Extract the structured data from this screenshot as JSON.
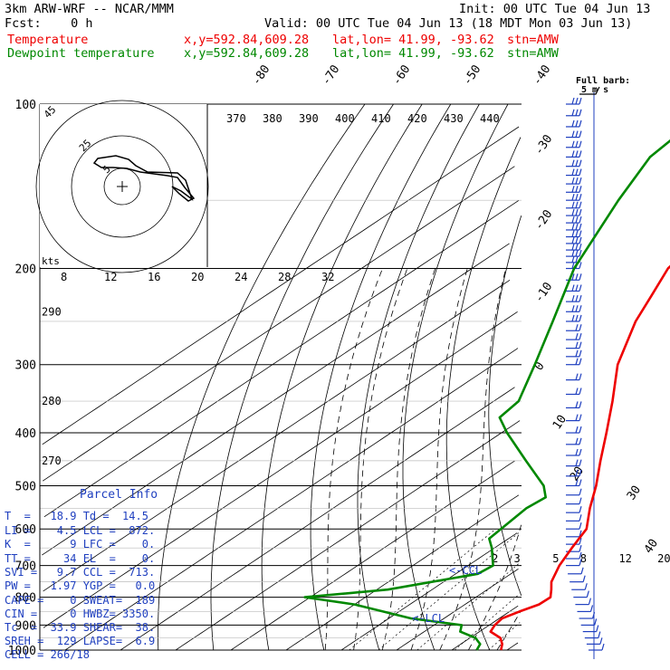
{
  "header": {
    "model": "3km ARW-WRF -- NCAR/MMM",
    "init": "Init: 00 UTC Tue 04 Jun 13",
    "fcst": "Fcst:    0 h",
    "valid": "Valid: 00 UTC Tue 04 Jun 13 (18 MDT Mon 03 Jun 13)",
    "temp_label": "Temperature",
    "dew_label": "Dewpoint temperature",
    "loc_xy": "x,y=592.84,609.28",
    "loc_latlon": "lat,lon= 41.99, -93.62",
    "stn": "stn=AMW",
    "temp_color": "#ee0000",
    "dew_color": "#008800"
  },
  "full_barb_label": "Full barb:",
  "full_barb_units": "5 m s",
  "hodograph_units": "kts",
  "parcel_title": "Parcel Info",
  "parcel_rows": [
    "T  =   18.9 Td =  14.5",
    "LI =    4.5 LCL =  872.",
    "K  =      9 LFC =    0.",
    "TT =     34 EL  =    0.",
    "SVI =   9.7 CCL =  713.",
    "PW =   1.97 YGP =   0.0",
    "CAPE =    0 SWEAT=  189",
    "CIN =     0 HWBZ= 3350.",
    "Tc  =  33.9 SHEAR=  38.",
    "SREH =  129 LAPSE=  6.9",
    "CELL = 266/18"
  ],
  "ccl_label": "<-CCL",
  "lcl_label": "<-LCL",
  "chart_data": {
    "type": "line",
    "title": "",
    "pressure_levels": [
      100,
      200,
      300,
      400,
      500,
      600,
      700,
      800,
      900,
      1000
    ],
    "isotherm_labels": [
      "-80",
      "-70",
      "-60",
      "-50",
      "-40",
      "-30",
      "-20",
      "-10",
      "0",
      "10",
      "20",
      "30",
      "40"
    ],
    "theta_labels": [
      "370",
      "380",
      "390",
      "400",
      "410",
      "420",
      "430",
      "440"
    ],
    "theta_left_labels": [
      "290",
      "280",
      "270"
    ],
    "theta_left_label_p": [
      240,
      350,
      450
    ],
    "mixing_ratio_labels": [
      "2",
      "3",
      "5",
      "8",
      "12",
      "20"
    ],
    "mixing_ratio_label_t": [
      -6,
      -2,
      5,
      10,
      17,
      24
    ],
    "hodo_speed_labels": [
      "8",
      "12",
      "16",
      "20",
      "24",
      "28",
      "32"
    ],
    "hodo_ring_labels": [
      "5",
      "25",
      "45"
    ],
    "series": [
      {
        "name": "Temperature",
        "points": [
          {
            "p": 1000,
            "t": 18.9
          },
          {
            "p": 975,
            "t": 17.5
          },
          {
            "p": 950,
            "t": 15.5
          },
          {
            "p": 925,
            "t": 12.0
          },
          {
            "p": 900,
            "t": 11.0
          },
          {
            "p": 875,
            "t": 10.5
          },
          {
            "p": 850,
            "t": 11.8
          },
          {
            "p": 825,
            "t": 13.4
          },
          {
            "p": 800,
            "t": 13.5
          },
          {
            "p": 775,
            "t": 11.6
          },
          {
            "p": 750,
            "t": 9.5
          },
          {
            "p": 700,
            "t": 6.5
          },
          {
            "p": 650,
            "t": 4.0
          },
          {
            "p": 600,
            "t": 1.5
          },
          {
            "p": 550,
            "t": -3.5
          },
          {
            "p": 500,
            "t": -8.5
          },
          {
            "p": 450,
            "t": -14.5
          },
          {
            "p": 400,
            "t": -21.0
          },
          {
            "p": 350,
            "t": -28.5
          },
          {
            "p": 300,
            "t": -37.5
          },
          {
            "p": 250,
            "t": -46.0
          },
          {
            "p": 225,
            "t": -50.0
          },
          {
            "p": 200,
            "t": -54.5
          },
          {
            "p": 190,
            "t": -55.5
          },
          {
            "p": 175,
            "t": -56.0
          },
          {
            "p": 150,
            "t": -58.5
          },
          {
            "p": 125,
            "t": -62.0
          },
          {
            "p": 110,
            "t": -65.5
          },
          {
            "p": 100,
            "t": -68.0
          }
        ]
      },
      {
        "name": "Dewpoint temperature",
        "points": [
          {
            "p": 1000,
            "t": 14.5
          },
          {
            "p": 975,
            "t": 13.5
          },
          {
            "p": 950,
            "t": 11.0
          },
          {
            "p": 925,
            "t": 6.5
          },
          {
            "p": 900,
            "t": 5.0
          },
          {
            "p": 875,
            "t": -6.0
          },
          {
            "p": 825,
            "t": -20.0
          },
          {
            "p": 800,
            "t": -31.0
          },
          {
            "p": 775,
            "t": -18.0
          },
          {
            "p": 725,
            "t": -6.0
          },
          {
            "p": 700,
            "t": -5.5
          },
          {
            "p": 650,
            "t": -10.5
          },
          {
            "p": 625,
            "t": -13.5
          },
          {
            "p": 600,
            "t": -14.0
          },
          {
            "p": 550,
            "t": -15.0
          },
          {
            "p": 525,
            "t": -14.5
          },
          {
            "p": 500,
            "t": -18.0
          },
          {
            "p": 450,
            "t": -28.0
          },
          {
            "p": 400,
            "t": -39.0
          },
          {
            "p": 375,
            "t": -44.5
          },
          {
            "p": 350,
            "t": -45.5
          },
          {
            "p": 300,
            "t": -52.5
          },
          {
            "p": 250,
            "t": -61.0
          },
          {
            "p": 200,
            "t": -71.5
          },
          {
            "p": 150,
            "t": -82.0
          },
          {
            "p": 125,
            "t": -88.0
          },
          {
            "p": 110,
            "t": -89.5
          },
          {
            "p": 100,
            "t": -88.0
          }
        ]
      }
    ],
    "wind_profile_p": [
      100,
      105,
      110,
      115,
      120,
      125,
      130,
      135,
      140,
      145,
      150,
      155,
      160,
      165,
      170,
      175,
      180,
      185,
      190,
      195,
      200,
      210,
      220,
      230,
      240,
      250,
      260,
      270,
      280,
      290,
      300,
      320,
      340,
      360,
      380,
      400,
      420,
      440,
      460,
      480,
      500,
      520,
      540,
      560,
      580,
      600,
      620,
      640,
      660,
      680,
      700,
      725,
      750,
      775,
      800,
      825,
      850,
      875,
      900,
      925,
      950,
      975,
      1000
    ],
    "xlabel": "",
    "ylabel": ""
  }
}
